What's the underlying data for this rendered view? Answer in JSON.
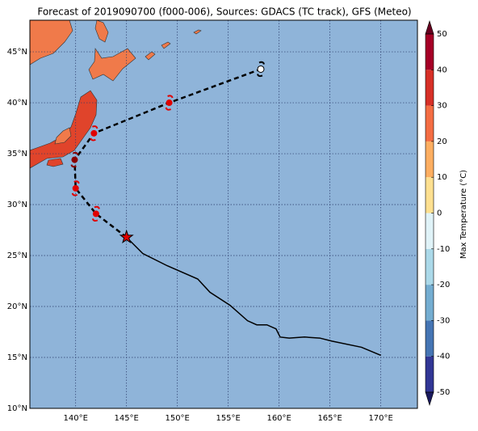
{
  "title": "Forecast of 2019090700 (f000-006), Sources: GDACS (TC track), GFS (Meteo)",
  "map": {
    "lonlim": [
      135.5,
      173.6
    ],
    "latlim": [
      10,
      48.1
    ],
    "ocean_color": "#8fb4d9",
    "grid": true,
    "lonticks": [
      {
        "value": 140,
        "label": "140°E"
      },
      {
        "value": 145,
        "label": "145°E"
      },
      {
        "value": 150,
        "label": "150°E"
      },
      {
        "value": 155,
        "label": "155°E"
      },
      {
        "value": 160,
        "label": "160°E"
      },
      {
        "value": 165,
        "label": "165°E"
      },
      {
        "value": 170,
        "label": "170°E"
      }
    ],
    "latticks": [
      {
        "value": 10,
        "label": "10°N"
      },
      {
        "value": 15,
        "label": "15°N"
      },
      {
        "value": 20,
        "label": "20°N"
      },
      {
        "value": 25,
        "label": "25°N"
      },
      {
        "value": 30,
        "label": "30°N"
      },
      {
        "value": 35,
        "label": "35°N"
      },
      {
        "value": 40,
        "label": "40°N"
      },
      {
        "value": 45,
        "label": "45°N"
      }
    ],
    "track": {
      "color": "#000000",
      "lon": [
        170.0,
        168.1,
        165.2,
        164.0,
        162.5,
        161.0,
        160.1,
        159.7,
        158.8,
        157.8,
        156.9,
        155.2,
        153.2,
        152.0,
        149.0,
        146.6,
        145.0
      ],
      "lat": [
        15.2,
        16.0,
        16.6,
        16.9,
        17.0,
        16.9,
        17.0,
        17.8,
        18.2,
        18.2,
        18.6,
        20.1,
        21.4,
        22.7,
        24.0,
        25.2,
        26.8
      ]
    },
    "forecast": {
      "line_color": "#000000",
      "lon": [
        145.0,
        142.0,
        140.0,
        139.9,
        141.8,
        149.2,
        158.2
      ],
      "lat": [
        26.8,
        29.1,
        31.6,
        34.4,
        37.0,
        40.0,
        43.3
      ],
      "marker_colors": [
        "#e00000",
        "#e00000",
        "#e00000",
        "#8b0000",
        "#e00000",
        "#e00000",
        "#ffffff"
      ]
    }
  },
  "colorbar": {
    "label": "Max Temperature (°C)",
    "lim": [
      -50,
      50
    ],
    "ticks": [
      -50,
      -40,
      -30,
      -20,
      -10,
      0,
      10,
      20,
      30,
      40,
      50
    ],
    "colors": [
      "#313695",
      "#4575b4",
      "#74add1",
      "#abd9e9",
      "#e0f3f8",
      "#fee090",
      "#fdae61",
      "#f46d43",
      "#d73027",
      "#a50026"
    ],
    "under_color": "#1a1a5e",
    "over_color": "#67001f"
  }
}
